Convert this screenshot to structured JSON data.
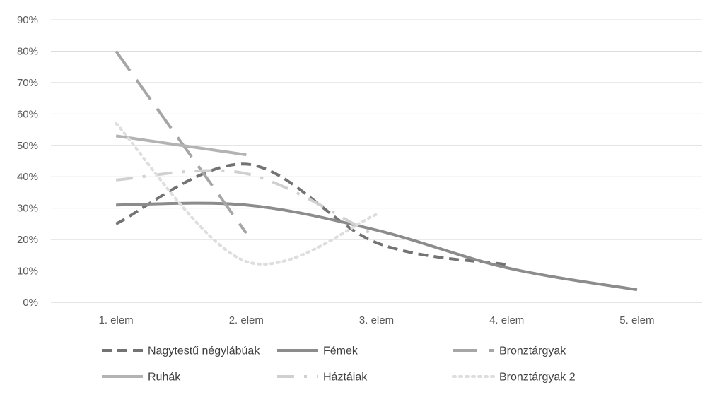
{
  "chart_data": {
    "type": "line",
    "title": "",
    "xlabel": "",
    "ylabel": "",
    "categories": [
      "1. elem",
      "2. elem",
      "3. elem",
      "4. elem",
      "5. elem"
    ],
    "ylim": [
      0,
      90
    ],
    "yticks": [
      "0%",
      "10%",
      "20%",
      "30%",
      "40%",
      "50%",
      "60%",
      "70%",
      "80%",
      "90%"
    ],
    "grid": true,
    "smooth": true,
    "legend_position": "bottom",
    "series": [
      {
        "name": "Nagytestű négylábúak",
        "values": [
          25,
          44,
          19,
          12,
          null
        ],
        "color": "#737373",
        "dash": "dash"
      },
      {
        "name": "Fémek",
        "values": [
          31,
          31,
          23,
          11,
          4
        ],
        "color": "#8c8c8c",
        "dash": "solid"
      },
      {
        "name": "Bronztárgyak",
        "values": [
          80,
          22,
          null,
          null,
          null
        ],
        "color": "#a6a6a6",
        "dash": "longdash"
      },
      {
        "name": "Ruhák",
        "values": [
          53,
          47,
          null,
          null,
          null
        ],
        "color": "#b3b3b3",
        "dash": "solid"
      },
      {
        "name": "Háztáiak",
        "values": [
          39,
          41,
          21,
          null,
          null
        ],
        "color": "#d0d0d0",
        "dash": "longdashdot"
      },
      {
        "name": "Bronztárgyak 2",
        "values": [
          57,
          13,
          28,
          null,
          null
        ],
        "color": "#dedede",
        "dash": "dot"
      }
    ]
  }
}
